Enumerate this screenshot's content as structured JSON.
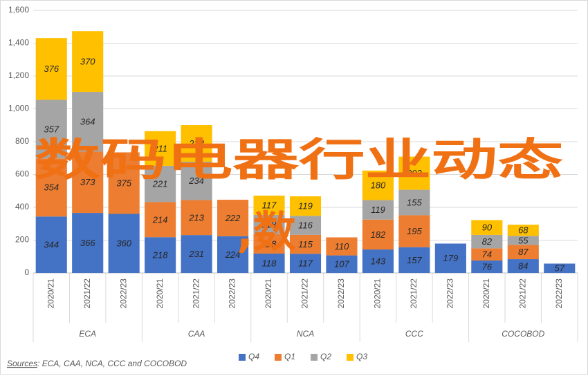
{
  "chart_data": {
    "type": "stacked_bar",
    "categories": [
      "2020/21",
      "2021/22",
      "2022/23",
      "2020/21",
      "2021/22",
      "2022/23",
      "2020/21",
      "2021/22",
      "2022/23",
      "2020/21",
      "2021/22",
      "2022/23",
      "2020/21",
      "2021/22",
      "2022/23"
    ],
    "groups": [
      "ECA",
      "CAA",
      "NCA",
      "CCC",
      "COCOBOD"
    ],
    "series": [
      {
        "name": "Q4",
        "color": "#4472c4",
        "values": [
          344,
          366,
          360,
          218,
          231,
          224,
          118,
          117,
          107,
          143,
          157,
          179,
          76,
          84,
          57
        ]
      },
      {
        "name": "Q1",
        "color": "#ed7d31",
        "values": [
          354,
          373,
          375,
          214,
          213,
          222,
          118,
          115,
          110,
          182,
          195,
          null,
          74,
          87,
          null
        ]
      },
      {
        "name": "Q2",
        "color": "#a5a5a5",
        "values": [
          357,
          364,
          null,
          221,
          234,
          null,
          118,
          116,
          null,
          119,
          155,
          null,
          82,
          55,
          null
        ]
      },
      {
        "name": "Q3",
        "color": "#ffc000",
        "values": [
          376,
          370,
          null,
          211,
          223,
          null,
          117,
          119,
          null,
          180,
          202,
          null,
          90,
          68,
          null
        ]
      }
    ],
    "ylim": [
      0,
      1600
    ],
    "yticks": [
      0,
      200,
      400,
      600,
      800,
      {
        "value": 1000,
        "label": "1,000"
      },
      {
        "value": 1200,
        "label": "1,200"
      },
      {
        "value": 1400,
        "label": "1,400"
      },
      {
        "value": 1600,
        "label": "1,600"
      }
    ],
    "grid": true,
    "legend": "bottom",
    "source_label": "Sources",
    "source_text": ": ECA, CAA, NCA, CCC and COCOBOD",
    "overlay_texts": [
      "数码电器行业动态",
      ",数"
    ]
  }
}
